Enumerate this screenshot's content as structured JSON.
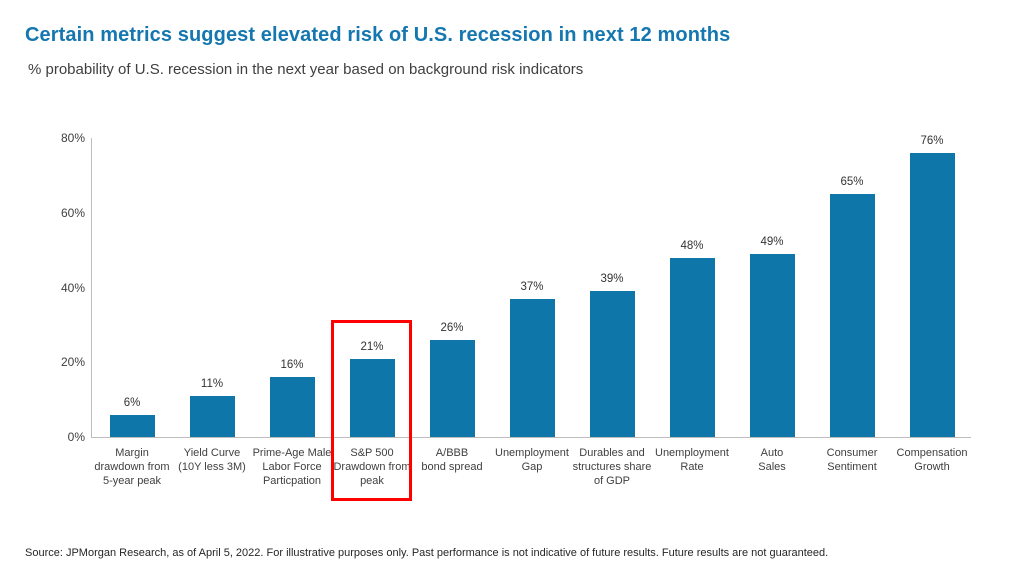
{
  "header": {
    "title": "Certain metrics suggest elevated risk of U.S. recession in next 12 months",
    "subtitle": "% probability of U.S. recession in the next year based on background risk indicators"
  },
  "footer": {
    "source": "Source: JPMorgan Research, as of April 5, 2022. For illustrative purposes only. Past performance is not indicative of future results. Future results are not guaranteed."
  },
  "colors": {
    "title_blue": "#1577b0",
    "bar_blue": "#0e76a8",
    "highlight_red": "#ff0000",
    "axis_gray": "#bdbdbd",
    "text_gray": "#404040"
  },
  "chart_data": {
    "type": "bar",
    "title": "Certain metrics suggest elevated risk of U.S. recession in next 12 months",
    "subtitle": "% probability of U.S. recession in the next year based on background risk indicators",
    "categories": [
      "Margin\ndrawdown from\n5-year peak",
      "Yield Curve\n(10Y less 3M)",
      "Prime-Age Male\nLabor Force\nParticpation",
      "S&P 500\nDrawdown from\npeak",
      "A/BBB\nbond spread",
      "Unemployment\nGap",
      "Durables and\nstructures share\nof GDP",
      "Unemployment\nRate",
      "Auto\nSales",
      "Consumer\nSentiment",
      "Compensation\nGrowth"
    ],
    "values": [
      6,
      11,
      16,
      21,
      26,
      37,
      39,
      48,
      49,
      65,
      76
    ],
    "data_labels": [
      "6%",
      "11%",
      "16%",
      "21%",
      "26%",
      "37%",
      "39%",
      "48%",
      "49%",
      "65%",
      "76%"
    ],
    "yticks": [
      "0%",
      "20%",
      "40%",
      "60%",
      "80%"
    ],
    "ylim": [
      0,
      80
    ],
    "xlabel": "",
    "ylabel": "",
    "grid": false,
    "legend": false,
    "highlighted_category_index": 3,
    "highlighted_category": "S&P 500 Drawdown from peak"
  }
}
